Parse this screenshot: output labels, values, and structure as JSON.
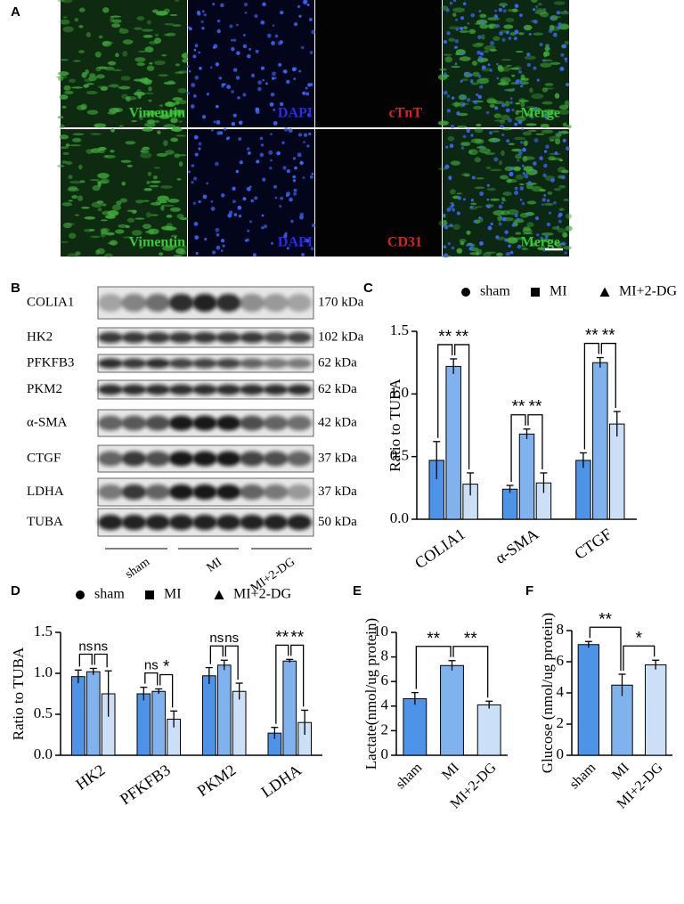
{
  "panel_labels": [
    "A",
    "B",
    "C",
    "D",
    "E",
    "F"
  ],
  "microscopy": {
    "rows": [
      [
        "Vimentin",
        "DAPI",
        "cTnT",
        "Merge"
      ],
      [
        "Vimentin",
        "DAPI",
        "CD31",
        "Merge"
      ]
    ]
  },
  "western_blot": {
    "proteins": [
      {
        "name": "COLIA1",
        "size": "170 kDa"
      },
      {
        "name": "HK2",
        "size": "102 kDa"
      },
      {
        "name": "PFKFB3",
        "size": "62 kDa"
      },
      {
        "name": "PKM2",
        "size": "62 kDa"
      },
      {
        "name": "α-SMA",
        "size": "42 kDa"
      },
      {
        "name": "CTGF",
        "size": "37 kDa"
      },
      {
        "name": "LDHA",
        "size": "37 kDa"
      },
      {
        "name": "TUBA",
        "size": "50 kDa"
      }
    ],
    "groups": [
      "sham",
      "MI",
      "MI+2-DG"
    ]
  },
  "chart_data": [
    {
      "type": "bar",
      "y_label": "Ratio to TUBA",
      "categories": [
        "COLIA1",
        "α-SMA",
        "CTGF"
      ],
      "series": [
        {
          "name": "sham",
          "color": "#4d94e8",
          "values": [
            0.47,
            0.24,
            0.47
          ],
          "errors": [
            0.15,
            0.03,
            0.06
          ]
        },
        {
          "name": "MI",
          "color": "#80b3ee",
          "values": [
            1.22,
            0.68,
            1.25
          ],
          "errors": [
            0.06,
            0.04,
            0.04
          ]
        },
        {
          "name": "MI+2-DG",
          "color": "#cbdff7",
          "values": [
            0.28,
            0.29,
            0.76
          ],
          "errors": [
            0.09,
            0.08,
            0.1
          ]
        }
      ],
      "ylim": [
        0,
        1.5
      ],
      "yticks": [
        {
          "value": 0,
          "label": "0.0"
        },
        0.5,
        {
          "value": 1,
          "label": "1.0"
        },
        1.5
      ],
      "comparisons": [
        {
          "category": 0,
          "pair": [
            0,
            1
          ],
          "label": "**"
        },
        {
          "category": 0,
          "pair": [
            1,
            2
          ],
          "label": "**"
        },
        {
          "category": 1,
          "pair": [
            0,
            1
          ],
          "label": "**"
        },
        {
          "category": 1,
          "pair": [
            1,
            2
          ],
          "label": "**"
        },
        {
          "category": 2,
          "pair": [
            0,
            1
          ],
          "label": "**"
        },
        {
          "category": 2,
          "pair": [
            1,
            2
          ],
          "label": "**"
        }
      ]
    },
    {
      "type": "bar",
      "y_label": "Ratio to TUBA",
      "categories": [
        "HK2",
        "PFKFB3",
        "PKM2",
        "LDHA"
      ],
      "series": [
        {
          "name": "sham",
          "color": "#4d94e8",
          "values": [
            0.96,
            0.75,
            0.97,
            0.27
          ],
          "errors": [
            0.08,
            0.08,
            0.1,
            0.07
          ]
        },
        {
          "name": "MI",
          "color": "#80b3ee",
          "values": [
            1.02,
            0.78,
            1.1,
            1.15
          ],
          "errors": [
            0.04,
            0.03,
            0.06,
            0.02
          ]
        },
        {
          "name": "MI+2-DG",
          "color": "#cbdff7",
          "values": [
            0.75,
            0.44,
            0.78,
            0.4
          ],
          "errors": [
            0.28,
            0.1,
            0.1,
            0.15
          ]
        }
      ],
      "ylim": [
        0,
        1.5
      ],
      "yticks": [
        {
          "value": 0,
          "label": "0.0"
        },
        0.5,
        {
          "value": 1,
          "label": "1.0"
        },
        1.5
      ],
      "comparisons": [
        {
          "category": 0,
          "pair": [
            0,
            1
          ],
          "label": "ns"
        },
        {
          "category": 0,
          "pair": [
            1,
            2
          ],
          "label": "ns"
        },
        {
          "category": 1,
          "pair": [
            0,
            1
          ],
          "label": "ns"
        },
        {
          "category": 1,
          "pair": [
            1,
            2
          ],
          "label": "*"
        },
        {
          "category": 2,
          "pair": [
            0,
            1
          ],
          "label": "ns"
        },
        {
          "category": 2,
          "pair": [
            1,
            2
          ],
          "label": "ns"
        },
        {
          "category": 3,
          "pair": [
            0,
            1
          ],
          "label": "**"
        },
        {
          "category": 3,
          "pair": [
            1,
            2
          ],
          "label": "**"
        }
      ]
    },
    {
      "type": "bar",
      "y_label": "Lactate(nmol/ug protein)",
      "categories": [
        "sham",
        "MI",
        "MI+2-DG"
      ],
      "values": [
        4.6,
        7.3,
        4.1
      ],
      "errors": [
        0.5,
        0.4,
        0.3
      ],
      "colors": [
        "#4d94e8",
        "#80b3ee",
        "#cbdff7"
      ],
      "ylim": [
        0,
        10
      ],
      "yticks": [
        0,
        2,
        4,
        6,
        8,
        10
      ],
      "comparisons": [
        {
          "pair": [
            0,
            1
          ],
          "label": "**"
        },
        {
          "pair": [
            1,
            2
          ],
          "label": "**"
        }
      ]
    },
    {
      "type": "bar",
      "y_label": "Glucose (nmol/ug protein)",
      "categories": [
        "sham",
        "MI",
        "MI+2-DG"
      ],
      "values": [
        7.1,
        4.5,
        5.8
      ],
      "errors": [
        0.2,
        0.7,
        0.3
      ],
      "colors": [
        "#4d94e8",
        "#80b3ee",
        "#cbdff7"
      ],
      "ylim": [
        0,
        8
      ],
      "yticks": [
        0,
        2,
        4,
        6,
        8
      ],
      "comparisons": [
        {
          "pair": [
            0,
            1
          ],
          "label": "**"
        },
        {
          "pair": [
            1,
            2
          ],
          "label": "*"
        }
      ]
    }
  ]
}
